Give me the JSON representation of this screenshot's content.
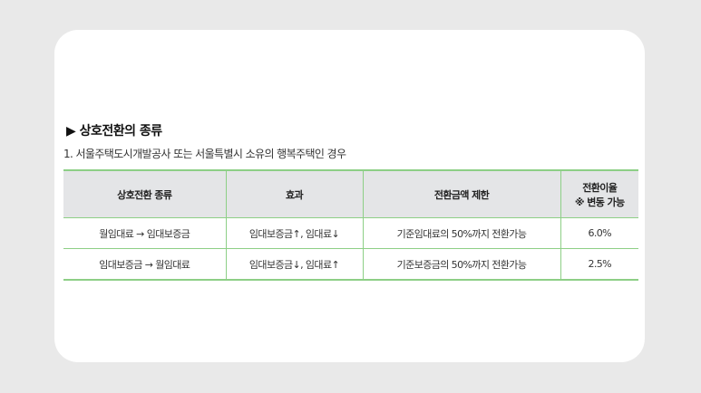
{
  "section_title": "▶ 상호전환의 종류",
  "subtitle": "1. 서울주택도시개발공사 또는 서울특별시 소유의 행복주택인 경우",
  "table": {
    "headers": [
      "상호전환 종류",
      "효과",
      "전환금액 제한",
      "전환이율",
      "※ 변동 가능"
    ],
    "rows": [
      [
        "월임대료 → 임대보증금",
        "임대보증금↑, 임대료↓",
        "기준임대료의 50%까지 전환가능",
        "6.0%"
      ],
      [
        "임대보증금 → 월임대료",
        "임대보증금↓, 임대료↑",
        "기준보증금의 50%까지 전환가능",
        "2.5%"
      ]
    ]
  },
  "colors": {
    "border": "#8dcf86",
    "header_bg": "#e4e5e7"
  }
}
